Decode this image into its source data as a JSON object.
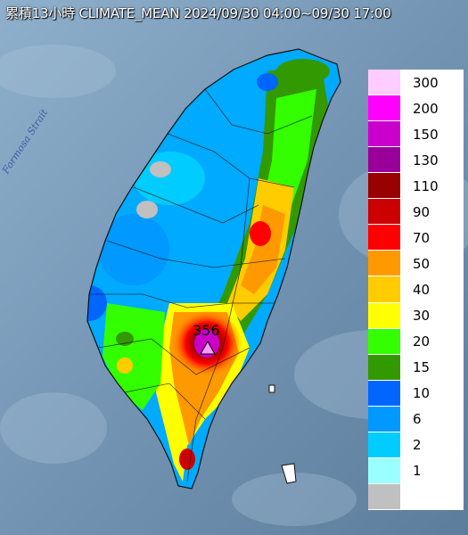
{
  "title": "累積13小時 CLIMATE_MEAN 2024/09/30 04:00~09/30 17:00",
  "strait_label": "Formosa Strait",
  "peak": {
    "value": "356",
    "marker": "triangle-marker-icon"
  },
  "legend": [
    {
      "label": "300",
      "color": "#ffccff"
    },
    {
      "label": "200",
      "color": "#ff00ff"
    },
    {
      "label": "150",
      "color": "#cc00cc"
    },
    {
      "label": "130",
      "color": "#990099"
    },
    {
      "label": "110",
      "color": "#990000"
    },
    {
      "label": "90",
      "color": "#cc0000"
    },
    {
      "label": "70",
      "color": "#ff0000"
    },
    {
      "label": "50",
      "color": "#ff9900"
    },
    {
      "label": "40",
      "color": "#ffcc00"
    },
    {
      "label": "30",
      "color": "#ffff00"
    },
    {
      "label": "20",
      "color": "#33ff00"
    },
    {
      "label": "15",
      "color": "#339900"
    },
    {
      "label": "10",
      "color": "#0066ff"
    },
    {
      "label": "6",
      "color": "#0099ff"
    },
    {
      "label": "2",
      "color": "#00ccff"
    },
    {
      "label": "1",
      "color": "#99ffff"
    },
    {
      "label": "",
      "color": "#c0c0c0"
    }
  ]
}
